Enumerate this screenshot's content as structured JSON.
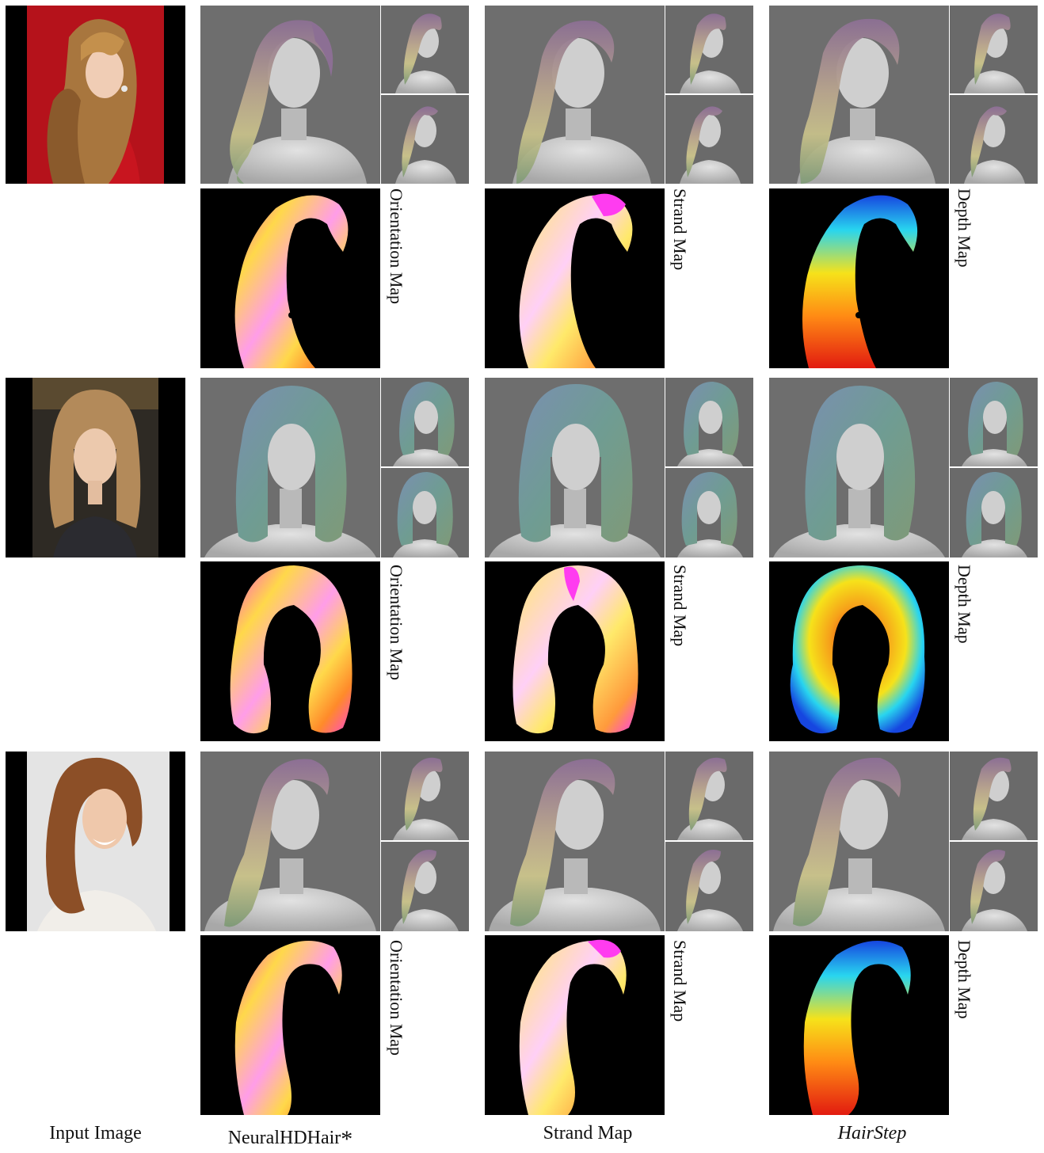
{
  "figure": {
    "rows": [
      {
        "id": "row-1",
        "map_labels": [
          "Orientation Map",
          "Strand Map",
          "Depth Map"
        ]
      },
      {
        "id": "row-2",
        "map_labels": [
          "Orientation Map",
          "Strand Map",
          "Depth Map"
        ]
      },
      {
        "id": "row-3",
        "map_labels": [
          "Orientation Map",
          "Strand Map",
          "Depth Map"
        ]
      }
    ],
    "captions": {
      "input": "Input Image",
      "neural": "NeuralHDHair",
      "neural_mark": "*",
      "strand": "Strand Map",
      "hairstep": "HairStep"
    },
    "colors": {
      "render_bg": "#6e6e6e",
      "bust": "#c9c9c9",
      "hair_purple": "#8c6f94",
      "hair_yellow": "#c7c08a",
      "hair_green": "#7f9a78",
      "hair_teal": "#6f9c93",
      "hair_blue": "#7a8fb0",
      "map_bg": "#000000",
      "orientation_yellow": "#ffd84a",
      "orientation_magenta": "#ff47d4",
      "strand_yellow": "#ffe96a",
      "strand_magenta": "#ff3cf0",
      "depth_red": "#e21b10",
      "depth_yellow": "#f6e21a",
      "depth_cyan": "#28d5ef",
      "depth_blue": "#1646e0"
    }
  }
}
